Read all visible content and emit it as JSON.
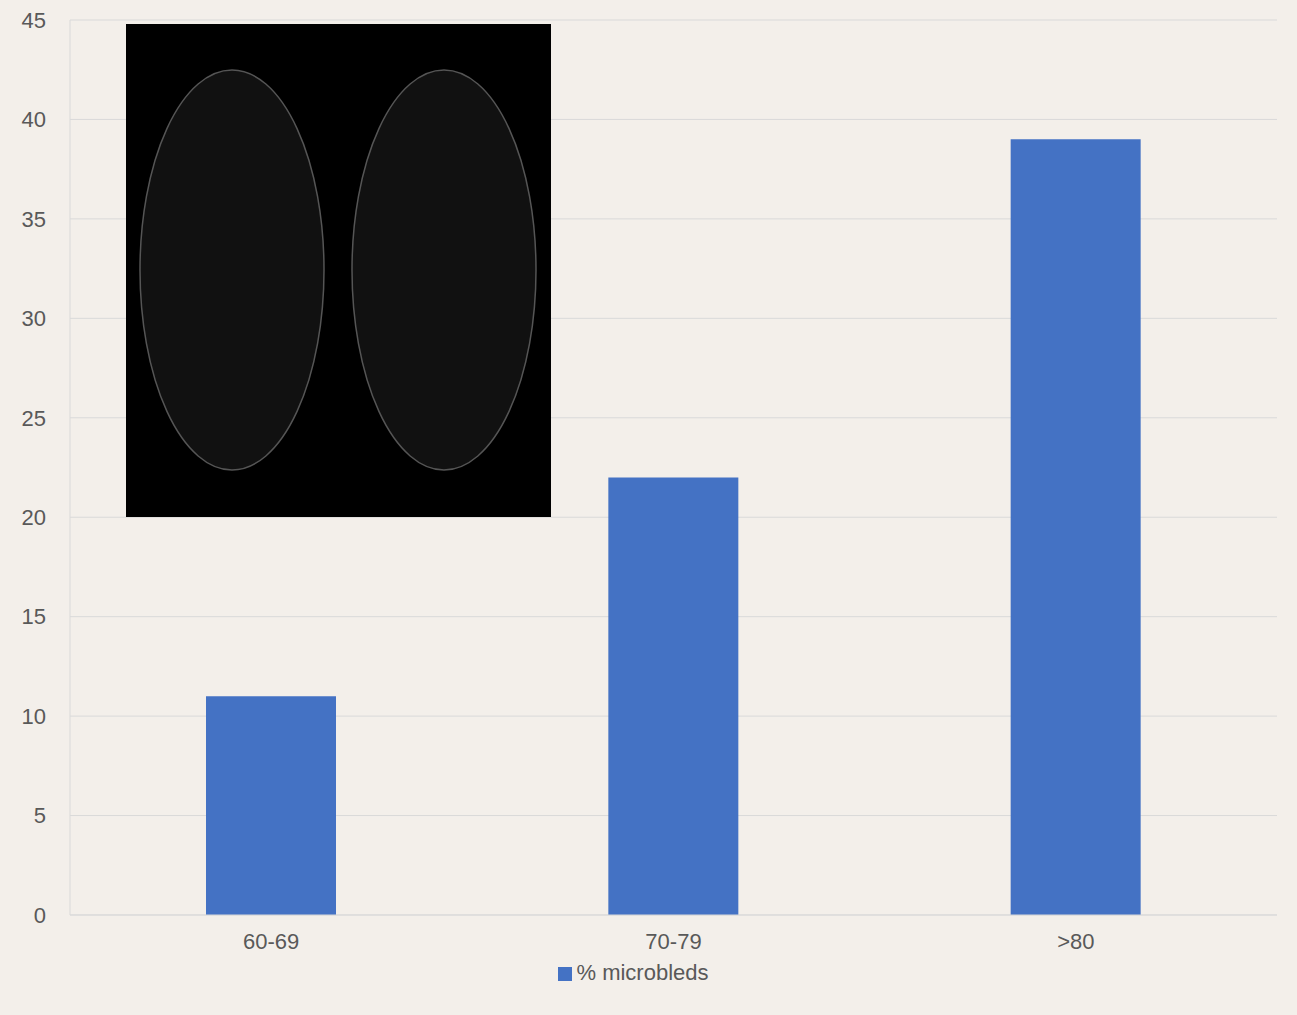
{
  "chart_data": {
    "type": "bar",
    "categories": [
      "60-69",
      "70-79",
      ">80"
    ],
    "series": [
      {
        "name": "% microbleds",
        "color": "#4472c4",
        "values": [
          11,
          22,
          39
        ]
      }
    ],
    "ylim": [
      0,
      45
    ],
    "yticks": [
      0,
      5,
      10,
      15,
      20,
      25,
      30,
      35,
      40,
      45
    ],
    "grid": true,
    "legend": "bottom"
  }
}
